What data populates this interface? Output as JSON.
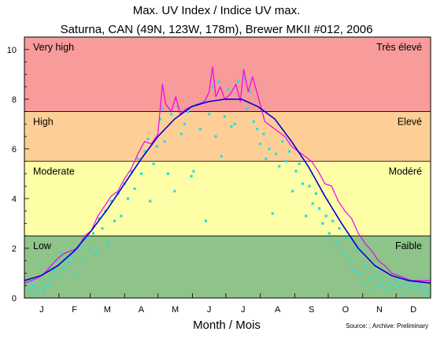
{
  "chart_data": {
    "type": "line",
    "title": "Max. UV Index / Indice UV max.",
    "subtitle": "Saturna, CAN (49N, 123W, 178m), Brewer MKII #012, 2006",
    "xlabel": "Month / Mois",
    "ylabel": "",
    "source": "Source: ; Archive: Preliminary",
    "xlim": [
      0,
      365
    ],
    "ylim": [
      0,
      10.5
    ],
    "y_ticks": [
      0,
      2,
      4,
      6,
      8,
      10
    ],
    "month_labels": [
      "J",
      "F",
      "M",
      "A",
      "M",
      "J",
      "J",
      "A",
      "S",
      "O",
      "N",
      "D"
    ],
    "grid": false,
    "bands": [
      {
        "from": 0,
        "to": 2.5,
        "label_en": "Low",
        "label_fr": "Faible",
        "color": "#8ec48a"
      },
      {
        "from": 2.5,
        "to": 5.5,
        "label_en": "Moderate",
        "label_fr": "Modéré",
        "color": "#fefea6"
      },
      {
        "from": 5.5,
        "to": 7.5,
        "label_en": "High",
        "label_fr": "Elevé",
        "color": "#fdcf96"
      },
      {
        "from": 7.5,
        "to": 10.5,
        "label_en": "Very high",
        "label_fr": "Très élevé",
        "color": "#f79b9b"
      }
    ],
    "series": [
      {
        "kind": "line",
        "color": "#0000dd",
        "x": [
          0,
          15,
          30,
          45,
          60,
          75,
          90,
          105,
          120,
          135,
          150,
          165,
          180,
          195,
          210,
          225,
          240,
          255,
          270,
          285,
          300,
          315,
          330,
          345,
          365
        ],
        "y": [
          0.7,
          0.9,
          1.3,
          1.9,
          2.7,
          3.6,
          4.6,
          5.6,
          6.5,
          7.2,
          7.7,
          7.9,
          8.0,
          8.0,
          7.7,
          7.2,
          6.3,
          5.3,
          4.1,
          3.0,
          2.0,
          1.3,
          0.9,
          0.7,
          0.6
        ]
      },
      {
        "kind": "line",
        "color": "#ee00ee",
        "x": [
          0,
          6,
          12,
          18,
          24,
          30,
          36,
          42,
          48,
          54,
          60,
          66,
          72,
          78,
          84,
          90,
          96,
          102,
          108,
          114,
          120,
          124,
          127,
          132,
          136,
          140,
          145,
          150,
          156,
          162,
          166,
          169,
          172,
          176,
          180,
          185,
          190,
          194,
          197,
          201,
          205,
          210,
          216,
          222,
          228,
          234,
          240,
          246,
          252,
          258,
          264,
          270,
          276,
          282,
          288,
          294,
          300,
          306,
          312,
          318,
          324,
          330,
          336,
          342,
          348,
          354,
          360,
          365
        ],
        "y": [
          0.6,
          0.7,
          0.8,
          1.0,
          1.3,
          1.6,
          1.8,
          1.9,
          2.0,
          2.5,
          2.7,
          3.3,
          3.7,
          4.1,
          4.3,
          4.8,
          5.2,
          5.8,
          6.3,
          6.2,
          6.6,
          8.6,
          7.8,
          7.5,
          8.1,
          7.4,
          7.6,
          7.7,
          7.8,
          7.9,
          8.3,
          9.3,
          8.1,
          8.5,
          8.0,
          8.2,
          8.6,
          7.9,
          9.2,
          8.3,
          8.9,
          8.1,
          7.1,
          6.9,
          6.7,
          6.5,
          6.1,
          5.9,
          5.7,
          5.5,
          5.1,
          4.6,
          4.5,
          3.9,
          3.5,
          3.2,
          2.6,
          2.2,
          1.9,
          1.5,
          1.3,
          1.0,
          0.9,
          0.8,
          0.7,
          0.7,
          0.7,
          0.7
        ]
      },
      {
        "kind": "scatter",
        "color": "#22e0e0",
        "points": [
          [
            2,
            0.6
          ],
          [
            5,
            0.3
          ],
          [
            8,
            0.5
          ],
          [
            10,
            0.2
          ],
          [
            13,
            0.4
          ],
          [
            16,
            0.6
          ],
          [
            18,
            0.3
          ],
          [
            21,
            0.5
          ],
          [
            24,
            0.8
          ],
          [
            26,
            1.1
          ],
          [
            28,
            1.5
          ],
          [
            31,
            0.9
          ],
          [
            33,
            1.8
          ],
          [
            35,
            1.2
          ],
          [
            37,
            1.6
          ],
          [
            40,
            1.4
          ],
          [
            42,
            1.7
          ],
          [
            45,
            0.9
          ],
          [
            47,
            1.9
          ],
          [
            50,
            2.1
          ],
          [
            53,
            1.5
          ],
          [
            56,
            2.4
          ],
          [
            59,
            2.0
          ],
          [
            62,
            2.6
          ],
          [
            64,
            1.8
          ],
          [
            67,
            3.2
          ],
          [
            70,
            2.8
          ],
          [
            73,
            3.5
          ],
          [
            75,
            2.2
          ],
          [
            78,
            3.9
          ],
          [
            81,
            3.1
          ],
          [
            84,
            4.2
          ],
          [
            87,
            3.3
          ],
          [
            90,
            4.6
          ],
          [
            93,
            4.0
          ],
          [
            96,
            5.1
          ],
          [
            99,
            4.4
          ],
          [
            102,
            5.6
          ],
          [
            105,
            5.0
          ],
          [
            108,
            5.9
          ],
          [
            111,
            6.4
          ],
          [
            113,
            3.9
          ],
          [
            116,
            5.4
          ],
          [
            119,
            6.1
          ],
          [
            122,
            7.2
          ],
          [
            124,
            7.6
          ],
          [
            126,
            6.3
          ],
          [
            129,
            5.0
          ],
          [
            132,
            7.4
          ],
          [
            135,
            4.3
          ],
          [
            138,
            7.7
          ],
          [
            141,
            6.6
          ],
          [
            144,
            7.0
          ],
          [
            147,
            7.5
          ],
          [
            150,
            4.9
          ],
          [
            152,
            5.1
          ],
          [
            155,
            7.8
          ],
          [
            158,
            6.8
          ],
          [
            161,
            7.9
          ],
          [
            163,
            3.1
          ],
          [
            166,
            7.4
          ],
          [
            169,
            8.5
          ],
          [
            172,
            6.5
          ],
          [
            175,
            8.7
          ],
          [
            177,
            5.7
          ],
          [
            180,
            7.3
          ],
          [
            183,
            8.4
          ],
          [
            186,
            6.9
          ],
          [
            189,
            7.0
          ],
          [
            192,
            8.7
          ],
          [
            194,
            8.0
          ],
          [
            197,
            8.8
          ],
          [
            200,
            7.6
          ],
          [
            203,
            8.3
          ],
          [
            206,
            7.1
          ],
          [
            209,
            6.8
          ],
          [
            212,
            6.2
          ],
          [
            215,
            6.6
          ],
          [
            217,
            5.6
          ],
          [
            220,
            6.0
          ],
          [
            223,
            3.4
          ],
          [
            226,
            5.8
          ],
          [
            229,
            5.3
          ],
          [
            232,
            6.3
          ],
          [
            235,
            5.5
          ],
          [
            238,
            5.9
          ],
          [
            241,
            4.3
          ],
          [
            244,
            5.1
          ],
          [
            247,
            5.4
          ],
          [
            250,
            4.6
          ],
          [
            253,
            3.3
          ],
          [
            256,
            4.5
          ],
          [
            259,
            3.8
          ],
          [
            262,
            4.2
          ],
          [
            265,
            3.6
          ],
          [
            268,
            3.0
          ],
          [
            271,
            3.3
          ],
          [
            274,
            2.6
          ],
          [
            277,
            3.1
          ],
          [
            280,
            2.2
          ],
          [
            283,
            2.8
          ],
          [
            286,
            1.8
          ],
          [
            289,
            2.4
          ],
          [
            292,
            1.5
          ],
          [
            295,
            1.1
          ],
          [
            298,
            1.9
          ],
          [
            301,
            1.0
          ],
          [
            304,
            0.6
          ],
          [
            307,
            1.3
          ],
          [
            310,
            0.8
          ],
          [
            313,
            0.4
          ],
          [
            316,
            0.9
          ],
          [
            319,
            0.5
          ],
          [
            322,
            0.7
          ],
          [
            325,
            0.3
          ],
          [
            328,
            0.6
          ],
          [
            331,
            0.4
          ],
          [
            334,
            0.7
          ],
          [
            337,
            0.5
          ],
          [
            340,
            0.2
          ],
          [
            343,
            0.6
          ],
          [
            346,
            0.4
          ],
          [
            349,
            0.6
          ],
          [
            352,
            0.3
          ],
          [
            355,
            0.5
          ],
          [
            358,
            0.4
          ],
          [
            361,
            0.2
          ],
          [
            364,
            0.3
          ]
        ]
      }
    ]
  }
}
